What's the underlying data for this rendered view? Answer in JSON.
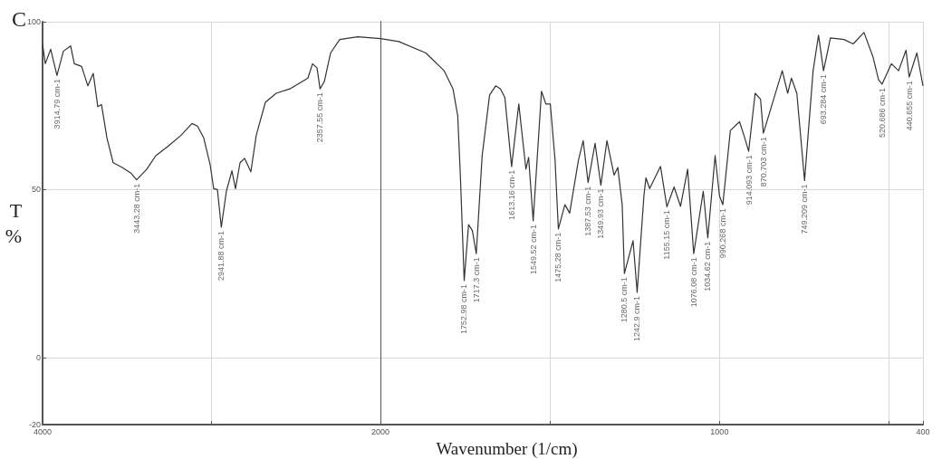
{
  "chart_data": [
    {
      "type": "line",
      "title": "C",
      "ylabel": "T%",
      "xlim": [
        4000,
        2000
      ],
      "ylim": [
        -20,
        100
      ],
      "xticks": [
        4000,
        {
          "value": 3000,
          "label": null
        },
        2000
      ],
      "yticks": [
        -20,
        0,
        50,
        100
      ],
      "grid": true,
      "marker": "none",
      "line_style": "solid",
      "series": [
        {
          "color": "#333333",
          "x": [
            4000,
            3984,
            3952,
            3914.79,
            3877,
            3834,
            3812,
            3769,
            3732,
            3700,
            3673,
            3651,
            3619,
            3582,
            3528,
            3475,
            3443.28,
            3383,
            3330,
            3260,
            3180,
            3115,
            3083,
            3046,
            3008,
            2987,
            2965,
            2941.88,
            2912,
            2879,
            2858,
            2831,
            2804,
            2767,
            2735,
            2681,
            2617,
            2536,
            2429,
            2402,
            2375,
            2357.55,
            2332,
            2295,
            2241,
            2134,
            2000
          ],
          "values": [
            93.4,
            87.5,
            91.8,
            84,
            91.2,
            92.8,
            87.5,
            86.7,
            80.9,
            84.6,
            74.7,
            75.3,
            65.4,
            58,
            56.6,
            54.8,
            52.9,
            56.1,
            60.1,
            62.8,
            66.2,
            69.7,
            68.9,
            65.4,
            57.4,
            50.3,
            50,
            38.8,
            49.5,
            55.6,
            50.3,
            58,
            59.3,
            55.3,
            66.2,
            76,
            78.7,
            80,
            83.2,
            87.5,
            86.2,
            80,
            82.2,
            90.7,
            94.7,
            95.5,
            95
          ]
        }
      ],
      "annotations": [
        {
          "text": "3914.79 cm-1",
          "x": 3914.79,
          "y": 84
        },
        {
          "text": "3443.28 cm-1",
          "x": 3443.28,
          "y": 52.9
        },
        {
          "text": "2941.88 cm-1",
          "x": 2941.88,
          "y": 38.8
        },
        {
          "text": "2357.55 cm-1",
          "x": 2357.55,
          "y": 80
        }
      ]
    },
    {
      "type": "line",
      "xlabel": "Wavenumber (1/cm)",
      "xlim": [
        2000,
        400
      ],
      "ylim": [
        -20,
        100
      ],
      "xticks": [
        {
          "value": 2000,
          "label": null
        },
        {
          "value": 1500,
          "label": null
        },
        1000,
        {
          "value": 500,
          "label": null
        },
        400
      ],
      "yticks": [
        -20,
        0,
        50,
        100
      ],
      "tick_labels": "x",
      "grid": true,
      "marker": "none",
      "line_style": "solid",
      "series": [
        {
          "color": "#333333",
          "x": [
            2000,
            1946,
            1866,
            1812,
            1786,
            1772,
            1764,
            1752.98,
            1740,
            1729,
            1717.3,
            1700,
            1678,
            1660,
            1646,
            1633,
            1613.16,
            1592,
            1571,
            1563,
            1549.52,
            1525,
            1512,
            1499,
            1485,
            1475.28,
            1456,
            1442,
            1416,
            1402,
            1387.53,
            1367,
            1349.93,
            1332,
            1311,
            1300,
            1287,
            1280.5,
            1255,
            1242.9,
            1223,
            1217,
            1206,
            1174,
            1155.15,
            1134,
            1115,
            1094,
            1076.08,
            1048,
            1034.62,
            1013,
            1000,
            990.268,
            968,
            941,
            928,
            914.093,
            895,
            879,
            870.703,
            847,
            815,
            799,
            788,
            772,
            749.209,
            724,
            708,
            693.284,
            673,
            633,
            606,
            574,
            547,
            531,
            520.686,
            493,
            472,
            450,
            440.655,
            418,
            400
          ],
          "values": [
            95,
            94.1,
            90.7,
            85.4,
            80,
            72,
            53.5,
            22.9,
            39.6,
            37.8,
            30.9,
            60.1,
            78.2,
            80.9,
            80,
            77.4,
            56.9,
            75.5,
            56.1,
            59.6,
            40.7,
            79.3,
            75.5,
            75.5,
            58.8,
            38.3,
            45.5,
            43,
            58.8,
            64.6,
            52.1,
            63.8,
            51.3,
            64.6,
            54.3,
            56.6,
            45.5,
            25,
            34.8,
            19.4,
            48.1,
            53.5,
            50.3,
            56.9,
            44.9,
            50.8,
            45,
            56.1,
            30.9,
            49.5,
            35.6,
            60.1,
            48.1,
            45.5,
            67.6,
            70.2,
            66.2,
            61.4,
            78.7,
            76.9,
            66.8,
            74.7,
            85.4,
            78.7,
            83.2,
            78.7,
            52.7,
            85.4,
            96,
            85.4,
            95.2,
            94.7,
            93.4,
            96.8,
            89.4,
            82.7,
            81.4,
            87.5,
            85.4,
            91.5,
            83.5,
            90.7,
            80.9
          ]
        }
      ],
      "annotations": [
        {
          "text": "1752.98 cm-1",
          "x": 1752.98,
          "y": 22.9
        },
        {
          "text": "1717.3 cm-1",
          "x": 1717.3,
          "y": 30.9
        },
        {
          "text": "1613.16 cm-1",
          "x": 1613.16,
          "y": 56.9
        },
        {
          "text": "1549.52 cm-1",
          "x": 1549.52,
          "y": 40.7
        },
        {
          "text": "1475.28 cm-1",
          "x": 1475.28,
          "y": 38.3
        },
        {
          "text": "1387.53 cm-1",
          "x": 1387.53,
          "y": 52.1
        },
        {
          "text": "1349.93 cm-1",
          "x": 1349.93,
          "y": 51.3
        },
        {
          "text": "1280.5 cm-1",
          "x": 1280.5,
          "y": 25
        },
        {
          "text": "1242.9 cm-1",
          "x": 1242.9,
          "y": 19.4
        },
        {
          "text": "1155.15 cm-1",
          "x": 1155.15,
          "y": 44.9
        },
        {
          "text": "1076.08 cm-1",
          "x": 1076.08,
          "y": 30.9
        },
        {
          "text": "1034.62 cm-1",
          "x": 1034.62,
          "y": 35.6
        },
        {
          "text": "990.268 cm-1",
          "x": 990.268,
          "y": 45.5
        },
        {
          "text": "914.093 cm-1",
          "x": 914.093,
          "y": 61.4
        },
        {
          "text": "870.703 cm-1",
          "x": 870.703,
          "y": 66.8
        },
        {
          "text": "749.209 cm-1",
          "x": 749.209,
          "y": 52.7
        },
        {
          "text": "693.284 cm-1",
          "x": 693.284,
          "y": 85.4
        },
        {
          "text": "520.686 cm-1",
          "x": 520.686,
          "y": 81.4
        },
        {
          "text": "440.655 cm-1",
          "x": 440.655,
          "y": 83.5
        }
      ]
    }
  ]
}
